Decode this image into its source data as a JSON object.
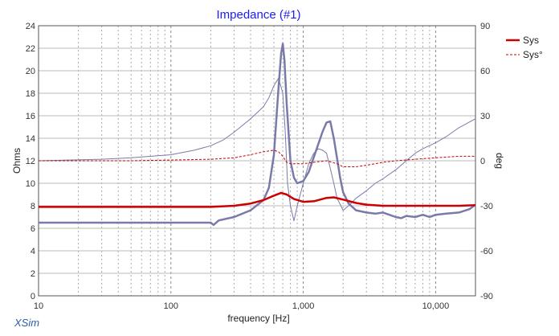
{
  "app": {
    "brand": "XSim"
  },
  "chart_data": {
    "type": "line",
    "title": "Impedance (#1)",
    "xlabel": "frequency [Hz]",
    "ylabel_left": "Ohms",
    "ylabel_right": "deg",
    "x_scale": "log",
    "xlim": [
      10,
      20000
    ],
    "ylim_left": [
      0,
      24
    ],
    "ylim_right": [
      -90,
      90
    ],
    "x_tick_labels": [
      {
        "value": 10,
        "label": "10"
      },
      {
        "value": 100,
        "label": "100"
      },
      {
        "value": 1000,
        "label": "1,000"
      },
      {
        "value": 10000,
        "label": "10,000"
      }
    ],
    "y_left_ticks": [
      0,
      2,
      4,
      6,
      8,
      10,
      12,
      14,
      16,
      18,
      20,
      22,
      24
    ],
    "y_right_ticks": [
      90,
      60,
      30,
      0,
      -30,
      -60,
      -90
    ],
    "grid": true,
    "legend_position": "top-right",
    "colors": {
      "sys": "#cc0000",
      "reference": "#7a7aaa",
      "title": "#1a1aff",
      "brand": "#2a5aa8"
    },
    "series": [
      {
        "name": "Sys",
        "axis": "left",
        "style": "solid",
        "color": "#cc0000",
        "x": [
          10,
          50,
          100,
          150,
          200,
          300,
          400,
          500,
          600,
          680,
          750,
          850,
          1000,
          1200,
          1500,
          1700,
          2000,
          2500,
          3000,
          4000,
          5000,
          7000,
          10000,
          15000,
          20000
        ],
        "values": [
          7.9,
          7.9,
          7.9,
          7.9,
          7.9,
          8.0,
          8.2,
          8.5,
          8.9,
          9.15,
          9.0,
          8.6,
          8.35,
          8.4,
          8.7,
          8.75,
          8.55,
          8.25,
          8.1,
          8.0,
          8.0,
          8.0,
          8.0,
          8.0,
          8.05
        ]
      },
      {
        "name": "Sys°",
        "axis": "right",
        "style": "dashed",
        "color": "#cc0000",
        "x": [
          10,
          50,
          100,
          200,
          300,
          400,
          500,
          600,
          650,
          700,
          750,
          800,
          1000,
          1200,
          1500,
          1800,
          2000,
          2500,
          3000,
          4000,
          5000,
          7000,
          10000,
          15000,
          20000
        ],
        "values": [
          0,
          0,
          0.5,
          1,
          2,
          4,
          6,
          7,
          6,
          3,
          -1,
          -2,
          -2,
          -1,
          0,
          -2,
          -4,
          -4,
          -3,
          -1,
          0,
          1,
          2,
          3,
          3
        ]
      },
      {
        "axis": "left",
        "style": "solid",
        "color": "#7a7aaa",
        "width": "thick",
        "x": [
          10,
          50,
          100,
          200,
          210,
          230,
          300,
          400,
          500,
          550,
          600,
          650,
          680,
          700,
          720,
          750,
          800,
          850,
          900,
          1000,
          1100,
          1200,
          1300,
          1400,
          1500,
          1600,
          1700,
          1800,
          1900,
          2000,
          2200,
          2500,
          3000,
          3500,
          4000,
          5000,
          5500,
          6000,
          7000,
          8000,
          9000,
          10000,
          12000,
          15000,
          18000,
          20000
        ],
        "values": [
          6.5,
          6.5,
          6.5,
          6.5,
          6.3,
          6.7,
          7.0,
          7.6,
          8.5,
          9.6,
          12.5,
          18.5,
          21.5,
          22.4,
          21.0,
          17.0,
          12.0,
          10.5,
          10.0,
          10.2,
          11.0,
          12.3,
          13.5,
          14.6,
          15.4,
          15.5,
          14.0,
          12.2,
          10.5,
          9.2,
          8.2,
          7.6,
          7.4,
          7.3,
          7.4,
          7.0,
          6.9,
          7.1,
          7.0,
          7.2,
          7.0,
          7.2,
          7.3,
          7.4,
          7.7,
          8.1
        ]
      },
      {
        "axis": "right",
        "style": "solid",
        "color": "#7a7aaa",
        "width": "thin",
        "x": [
          10,
          30,
          50,
          100,
          150,
          200,
          250,
          300,
          400,
          500,
          550,
          600,
          650,
          700,
          730,
          760,
          800,
          850,
          900,
          1000,
          1100,
          1200,
          1300,
          1400,
          1500,
          1600,
          1700,
          1800,
          2000,
          2200,
          2500,
          3000,
          3500,
          4000,
          5000,
          6000,
          7000,
          8000,
          10000,
          12000,
          15000,
          20000
        ],
        "values": [
          0,
          1,
          2,
          4,
          7,
          10,
          14,
          19,
          28,
          36,
          42,
          50,
          55,
          45,
          20,
          -15,
          -30,
          -40,
          -30,
          -15,
          -2,
          5,
          8,
          7,
          5,
          -5,
          -15,
          -25,
          -33,
          -30,
          -25,
          -20,
          -15,
          -12,
          -6,
          0,
          5,
          8,
          12,
          16,
          22,
          28
        ]
      }
    ]
  }
}
